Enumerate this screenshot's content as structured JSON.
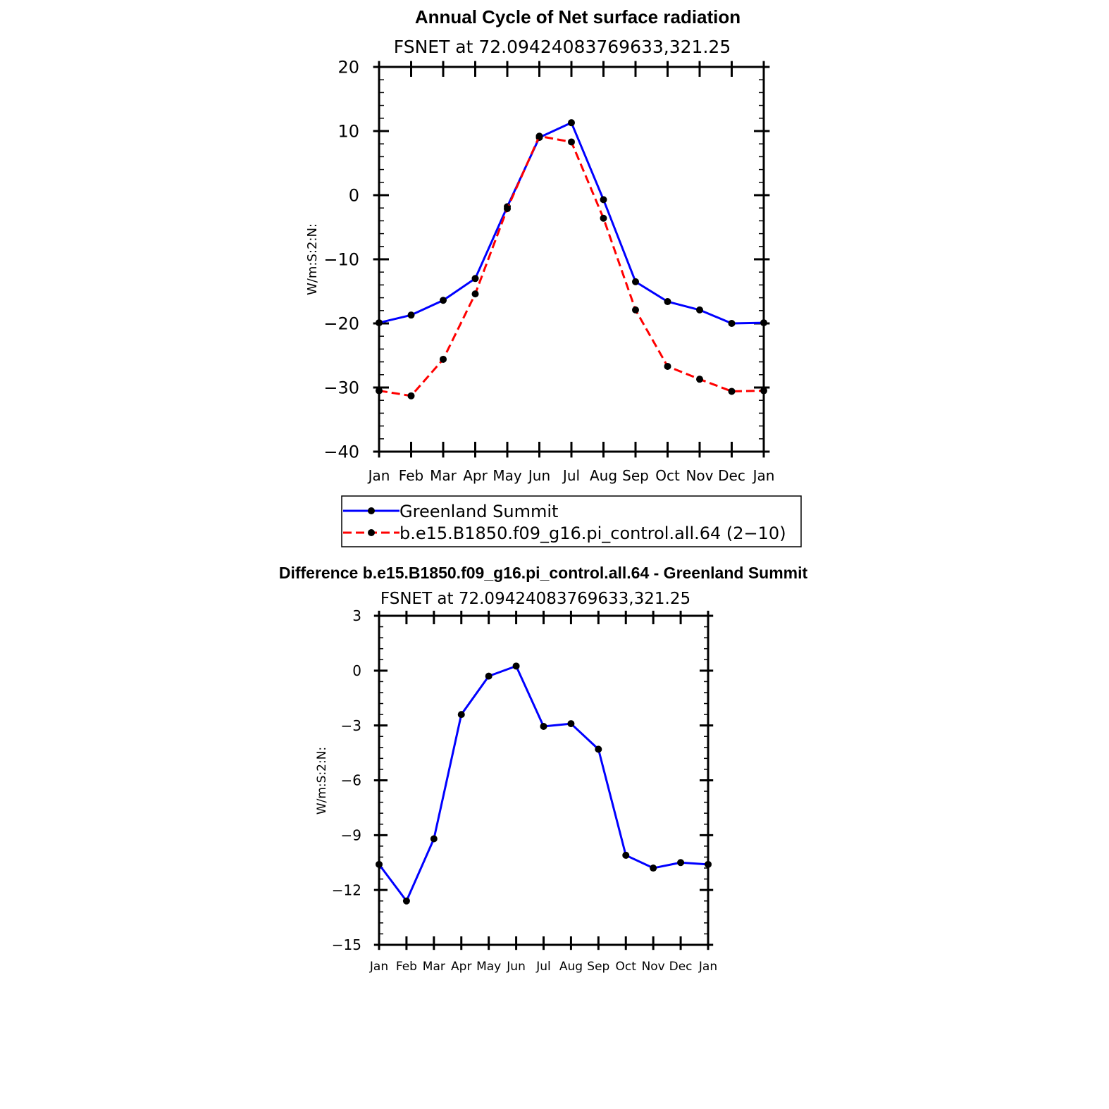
{
  "chart_data": [
    {
      "type": "line",
      "title": "Annual Cycle of Net surface radiation",
      "subtitle": "FSNET at 72.09424083769633,321.25",
      "ylabel": "W/m:S:2:N:",
      "xlabel": "",
      "categories": [
        "Jan",
        "Feb",
        "Mar",
        "Apr",
        "May",
        "Jun",
        "Jul",
        "Aug",
        "Sep",
        "Oct",
        "Nov",
        "Dec",
        "Jan"
      ],
      "ylim": [
        -40,
        20
      ],
      "yticks": [
        "20",
        "10",
        "0",
        "−10",
        "−20",
        "−30",
        "−40"
      ],
      "ytick_values": [
        20,
        10,
        0,
        -10,
        -20,
        -30,
        -40
      ],
      "series": [
        {
          "name": "Greenland Summit",
          "color": "#0000ff",
          "dash": "solid",
          "values": [
            -19.9,
            -18.7,
            -16.4,
            -13.0,
            -1.8,
            9.0,
            11.3,
            -0.7,
            -13.5,
            -16.6,
            -17.9,
            -20.0,
            -19.9
          ]
        },
        {
          "name": "b.e15.B1850.f09_g16.pi_control.all.64 (2−10)",
          "color": "#ff0000",
          "dash": "dashed",
          "values": [
            -30.5,
            -31.3,
            -25.6,
            -15.4,
            -2.1,
            9.2,
            8.3,
            -3.6,
            -17.9,
            -26.7,
            -28.7,
            -30.6,
            -30.5
          ]
        }
      ],
      "legend": {
        "entries": [
          "Greenland Summit",
          "b.e15.B1850.f09_g16.pi_control.all.64 (2−10)"
        ],
        "placement": "bottom"
      }
    },
    {
      "type": "line",
      "title": "Difference b.e15.B1850.f09_g16.pi_control.all.64 - Greenland Summit",
      "subtitle": "FSNET at 72.09424083769633,321.25",
      "ylabel": "W/m:S:2:N:",
      "xlabel": "",
      "categories": [
        "Jan",
        "Feb",
        "Mar",
        "Apr",
        "May",
        "Jun",
        "Jul",
        "Aug",
        "Sep",
        "Oct",
        "Nov",
        "Dec",
        "Jan"
      ],
      "ylim": [
        -15,
        3
      ],
      "yticks": [
        "3",
        "0",
        "−3",
        "−6",
        "−9",
        "−12",
        "−15"
      ],
      "ytick_values": [
        3,
        0,
        -3,
        -6,
        -9,
        -12,
        -15
      ],
      "series": [
        {
          "name": "difference",
          "color": "#0000ff",
          "dash": "solid",
          "values": [
            -10.6,
            -12.6,
            -9.2,
            -2.4,
            -0.3,
            0.25,
            -3.05,
            -2.9,
            -4.3,
            -10.1,
            -10.8,
            -10.5,
            -10.6
          ]
        }
      ]
    }
  ]
}
